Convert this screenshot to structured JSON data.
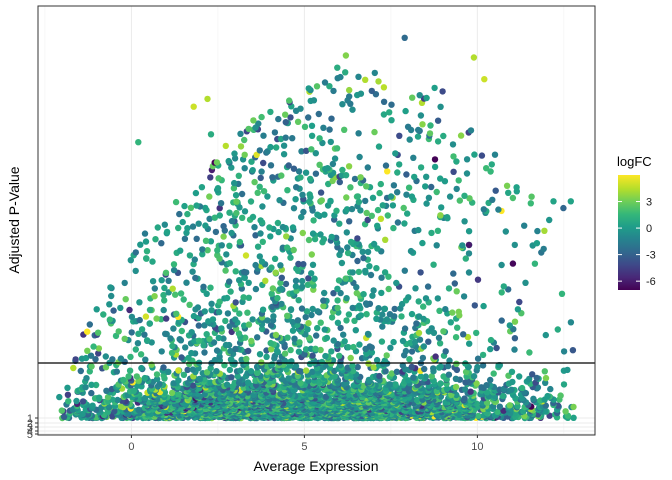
{
  "chart_data": {
    "type": "scatter",
    "xlabel": "Average Expression",
    "ylabel": "Adjusted P-Value",
    "x_ticks": [
      0,
      5,
      10
    ],
    "y_ticks": [
      "1",
      "2",
      "3",
      "4",
      "5"
    ],
    "xlim": [
      -2.7,
      13.4
    ],
    "grid": true,
    "legend": {
      "title": "logFC",
      "position": "right",
      "ticks": [
        3,
        0,
        -3,
        -6
      ],
      "range": [
        -7,
        6
      ],
      "palette": [
        "#440154",
        "#482878",
        "#3e4989",
        "#31688e",
        "#26828e",
        "#1f9e89",
        "#35b779",
        "#6ece58",
        "#b5de2b",
        "#fde725"
      ]
    },
    "hline": {
      "description": "horizontal reference line",
      "color": "#000000"
    },
    "point_cloud": {
      "x_center": 5.0,
      "x_spread_low": 3.4,
      "x_spread_high": 3.6,
      "x_min": -2.1,
      "x_max": 12.8,
      "point_count": 4200
    },
    "highlighted_points": [
      {
        "x": 7.9,
        "y_frac": 0.965,
        "logFC": -2.5
      },
      {
        "x": 6.2,
        "y_frac": 0.92,
        "logFC": 3.5
      },
      {
        "x": 9.9,
        "y_frac": 0.915,
        "logFC": 4.5
      },
      {
        "x": 10.2,
        "y_frac": 0.86,
        "logFC": 5.0
      },
      {
        "x": 0.2,
        "y_frac": 0.7,
        "logFC": 1.5
      },
      {
        "x": 2.3,
        "y_frac": 0.72,
        "logFC": 1.0
      },
      {
        "x": 12.2,
        "y_frac": 0.55,
        "logFC": 0.5
      },
      {
        "x": 12.7,
        "y_frac": 0.55,
        "logFC": 0.5
      },
      {
        "x": 12.5,
        "y_frac": 0.12,
        "logFC": 0.0
      },
      {
        "x": 11.7,
        "y_frac": 0.04,
        "logFC": 0.0
      },
      {
        "x": 11.1,
        "y_frac": 0.05,
        "logFC": 0.5
      },
      {
        "x": 1.8,
        "y_frac": 0.79,
        "logFC": 5.0
      },
      {
        "x": 2.2,
        "y_frac": 0.81,
        "logFC": 4.5
      },
      {
        "x": 8.4,
        "y_frac": 0.8,
        "logFC": 4.5
      }
    ]
  }
}
